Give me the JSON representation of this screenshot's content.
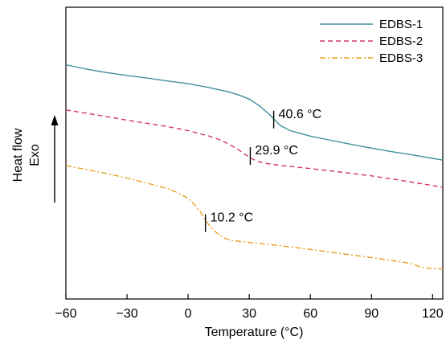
{
  "chart_data": {
    "type": "line",
    "xlabel": "Temperature (°C)",
    "ylabel": "Heat flow",
    "ylabel_direction": "Exo",
    "xlim": [
      -60,
      125
    ],
    "ylim": [
      0,
      100
    ],
    "y_ticks_shown": false,
    "x_ticks": [
      -60,
      -30,
      0,
      30,
      60,
      90,
      120
    ],
    "x_tick_labels": [
      "−60",
      "−30",
      "0",
      "30",
      "60",
      "90",
      "120"
    ],
    "grid": false,
    "legend_position": "top-right",
    "series": [
      {
        "name": "EDBS-1",
        "color": "#3f8f9c",
        "style": "solid",
        "x": [
          -60,
          -50,
          -40,
          -30,
          -20,
          -10,
          0,
          10,
          20,
          25,
          30,
          35,
          40,
          45,
          50,
          60,
          70,
          80,
          90,
          100,
          110,
          120,
          125
        ],
        "y": [
          80.3,
          78.8,
          77.6,
          76.6,
          75.7,
          74.7,
          73.8,
          72.5,
          71,
          69.9,
          68.5,
          66.2,
          63.2,
          59.6,
          57.7,
          55.8,
          54.4,
          53,
          51.7,
          50.5,
          49.4,
          48.2,
          47.6
        ]
      },
      {
        "name": "EDBS-2",
        "color": "#d4356e",
        "style": "dashed",
        "x": [
          -60,
          -50,
          -40,
          -30,
          -20,
          -10,
          0,
          10,
          15,
          20,
          25,
          28,
          31,
          34,
          38,
          45,
          60,
          75,
          90,
          105,
          120,
          125
        ],
        "y": [
          64.8,
          63.7,
          62.5,
          61.3,
          60.2,
          59.1,
          57.7,
          55.9,
          54.7,
          53.1,
          51,
          49.5,
          48.2,
          47.2,
          46.5,
          45.8,
          44.7,
          43.5,
          42.2,
          40.6,
          38.9,
          38.3
        ]
      },
      {
        "name": "EDBS-3",
        "color": "#e8a020",
        "style": "dashdot",
        "x": [
          -60,
          -50,
          -40,
          -30,
          -20,
          -10,
          -5,
          0,
          3,
          6,
          9,
          12,
          15,
          18,
          22,
          30,
          45,
          60,
          75,
          90,
          105,
          110,
          115,
          125
        ],
        "y": [
          45.7,
          44.4,
          43,
          41.5,
          39.7,
          37.8,
          36.4,
          34.5,
          32.4,
          29.8,
          26.5,
          23.9,
          22.1,
          20.8,
          20,
          19.4,
          18.3,
          17,
          15.6,
          14.2,
          12.7,
          12,
          10.7,
          10.3
        ]
      }
    ],
    "annotations": [
      {
        "text": "40.6 °C",
        "x": 42,
        "y": 61.5
      },
      {
        "text": "29.9 °C",
        "x": 30.5,
        "y": 49
      },
      {
        "text": "10.2 °C",
        "x": 8.5,
        "y": 26
      }
    ]
  }
}
